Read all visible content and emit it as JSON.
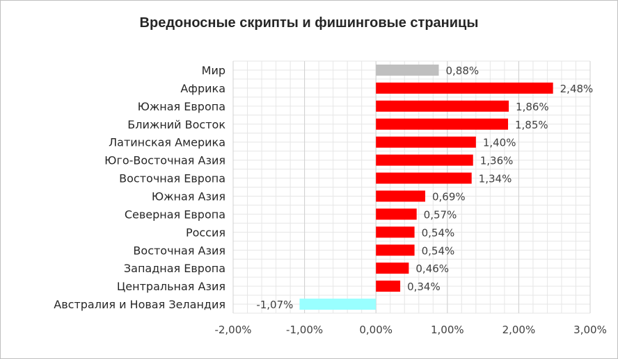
{
  "chart_data": {
    "type": "bar",
    "orientation": "horizontal",
    "title": "Вредоносные скрипты и фишинговые страницы",
    "categories": [
      "Мир",
      "Африка",
      "Южная Европа",
      "Ближний Восток",
      "Латинская Америка",
      "Юго-Восточная Азия",
      "Восточная Европа",
      "Южная Азия",
      "Северная Европа",
      "Россия",
      "Восточная Азия",
      "Западная Европа",
      "Центральная Азия",
      "Австралия и Новая Зеландия"
    ],
    "values": [
      0.88,
      2.48,
      1.86,
      1.85,
      1.4,
      1.36,
      1.34,
      0.69,
      0.57,
      0.54,
      0.54,
      0.46,
      0.34,
      -1.07
    ],
    "value_labels": [
      "0,88%",
      "2,48%",
      "1,86%",
      "1,85%",
      "1,40%",
      "1,36%",
      "1,34%",
      "0,69%",
      "0,57%",
      "0,54%",
      "0,54%",
      "0,46%",
      "0,34%",
      "-1,07%"
    ],
    "bar_colors": [
      "#bfbfbf",
      "#ff0000",
      "#ff0000",
      "#ff0000",
      "#ff0000",
      "#ff0000",
      "#ff0000",
      "#ff0000",
      "#ff0000",
      "#ff0000",
      "#ff0000",
      "#ff0000",
      "#ff0000",
      "#99ffff"
    ],
    "xlim": [
      -2.0,
      3.0
    ],
    "x_ticks": [
      -2,
      -1,
      0,
      1,
      2,
      3
    ],
    "x_tick_labels": [
      "-2,00%",
      "-1,00%",
      "0,00%",
      "1,00%",
      "2,00%",
      "3,00%"
    ],
    "xlabel": "",
    "ylabel": "",
    "grid": true,
    "legend": "none"
  }
}
